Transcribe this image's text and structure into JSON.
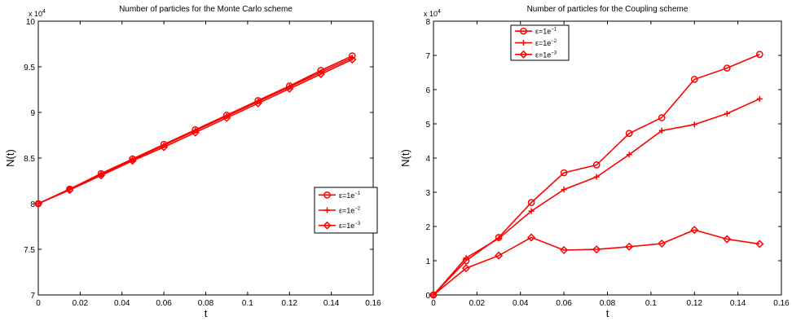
{
  "colors": {
    "series": "#ff0000",
    "axis": "#000000",
    "background": "#ffffff"
  },
  "chart_data": [
    {
      "type": "line",
      "title": "Number of particles for the Monte Carlo scheme",
      "xlabel": "t",
      "ylabel": "N(t)",
      "y_exponent": "x 10",
      "y_exponent_power": "4",
      "xlim": [
        0,
        0.16
      ],
      "ylim": [
        7,
        10
      ],
      "x_ticks": [
        "0",
        "0.02",
        "0.04",
        "0.06",
        "0.08",
        "0.1",
        "0.12",
        "0.14",
        "0.16"
      ],
      "y_ticks": [
        "7",
        "7.5",
        "8",
        "8.5",
        "9",
        "9.5",
        "10"
      ],
      "legend_position": "right",
      "x": [
        0,
        0.015,
        0.03,
        0.045,
        0.06,
        0.075,
        0.09,
        0.105,
        0.12,
        0.135,
        0.15
      ],
      "series": [
        {
          "name_base": "ε=1e",
          "name_power": "−1",
          "marker": "circle",
          "values": [
            8.0,
            8.16,
            8.33,
            8.49,
            8.65,
            8.81,
            8.97,
            9.13,
            9.29,
            9.46,
            9.62
          ]
        },
        {
          "name_base": "ε=1e",
          "name_power": "−2",
          "marker": "plus",
          "values": [
            8.0,
            8.16,
            8.32,
            8.48,
            8.64,
            8.8,
            8.96,
            9.12,
            9.28,
            9.44,
            9.6
          ]
        },
        {
          "name_base": "ε=1e",
          "name_power": "−3",
          "marker": "diamond",
          "values": [
            8.0,
            8.15,
            8.31,
            8.47,
            8.62,
            8.78,
            8.94,
            9.1,
            9.26,
            9.42,
            9.58
          ]
        }
      ]
    },
    {
      "type": "line",
      "title": "Number of particles for the Coupling scheme",
      "xlabel": "t",
      "ylabel": "N(t)",
      "y_exponent": "x 10",
      "y_exponent_power": "4",
      "xlim": [
        0,
        0.16
      ],
      "ylim": [
        0,
        8
      ],
      "x_ticks": [
        "0",
        "0.02",
        "0.04",
        "0.06",
        "0.08",
        "0.1",
        "0.12",
        "0.14",
        "0.16"
      ],
      "y_ticks": [
        "0",
        "1",
        "2",
        "3",
        "4",
        "5",
        "6",
        "7",
        "8"
      ],
      "legend_position": "top-left",
      "x": [
        0,
        0.015,
        0.03,
        0.045,
        0.06,
        0.075,
        0.09,
        0.105,
        0.12,
        0.135,
        0.15
      ],
      "series": [
        {
          "name_base": "ε=1e",
          "name_power": "−1",
          "marker": "circle",
          "values": [
            0,
            1.0,
            1.68,
            2.7,
            3.57,
            3.8,
            4.72,
            5.18,
            6.3,
            6.63,
            7.03
          ]
        },
        {
          "name_base": "ε=1e",
          "name_power": "−2",
          "marker": "plus",
          "values": [
            0,
            1.08,
            1.65,
            2.45,
            3.08,
            3.45,
            4.1,
            4.8,
            4.98,
            5.3,
            5.73
          ]
        },
        {
          "name_base": "ε=1e",
          "name_power": "−3",
          "marker": "diamond",
          "values": [
            0,
            0.78,
            1.15,
            1.68,
            1.31,
            1.33,
            1.41,
            1.5,
            1.9,
            1.63,
            1.49
          ]
        }
      ]
    }
  ]
}
